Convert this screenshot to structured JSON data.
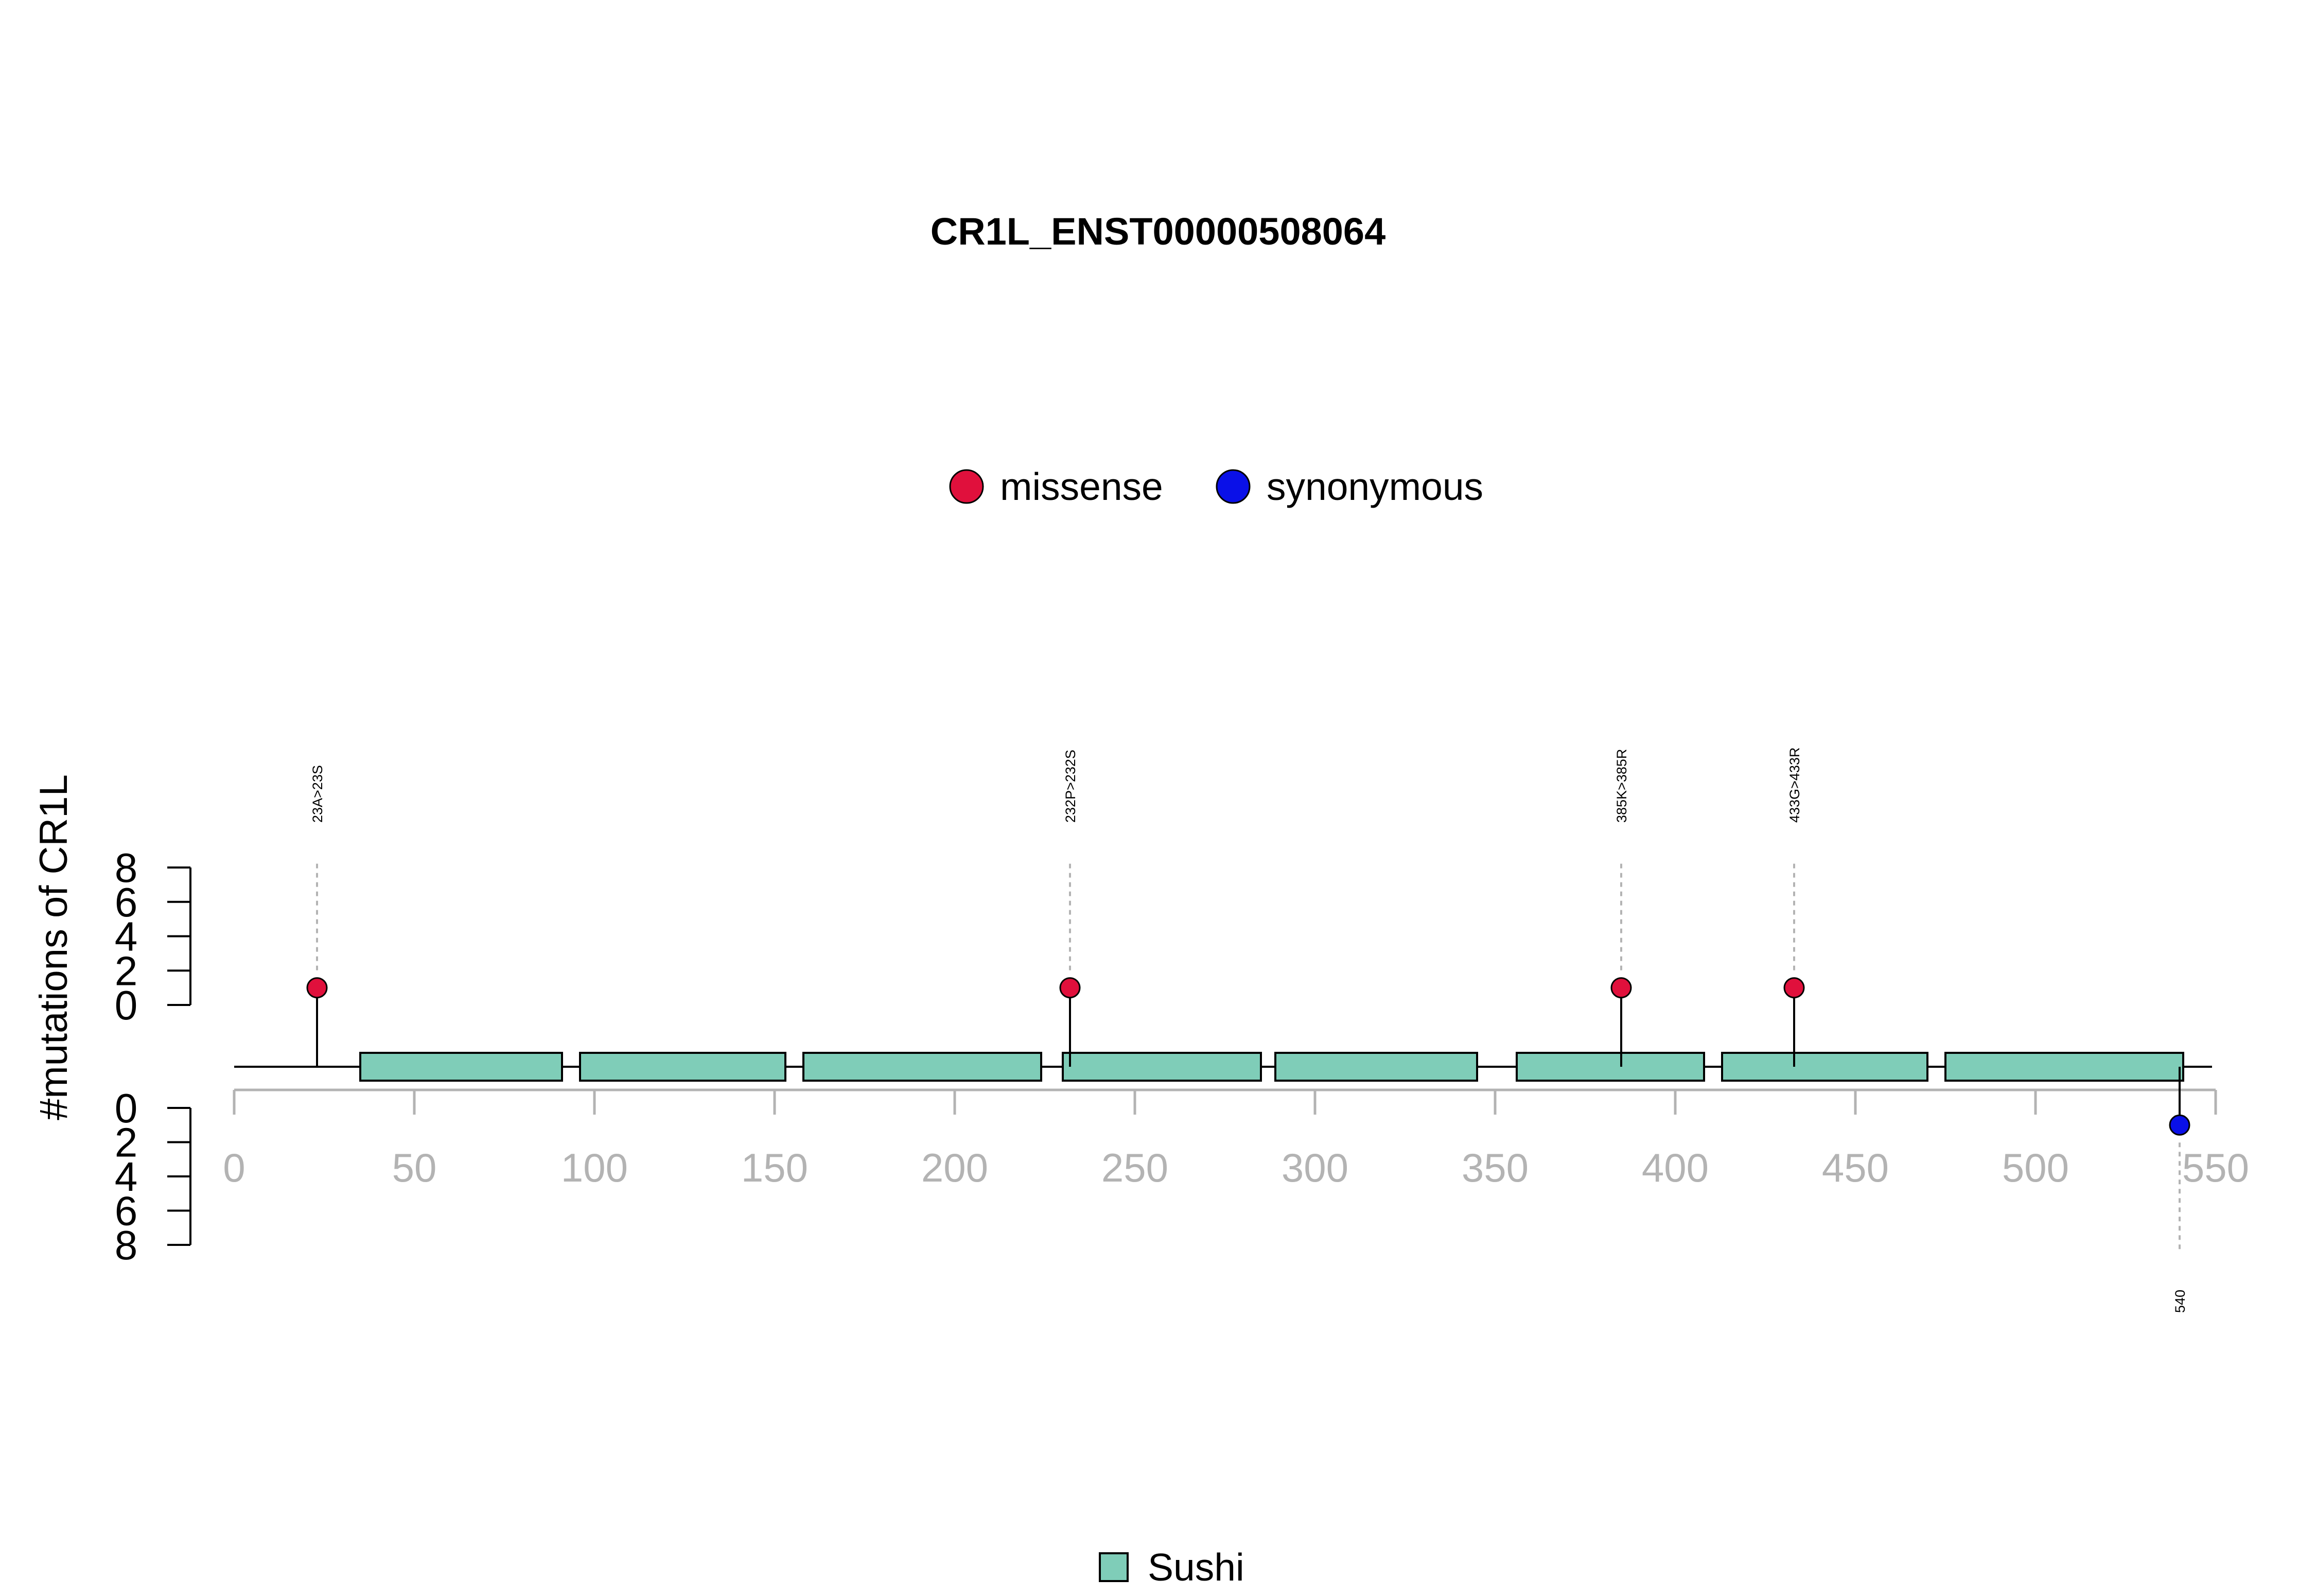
{
  "chart_data": {
    "type": "lollipop",
    "title": "CR1L_ENST00000508064",
    "ylabel": "#mutations of CR1L",
    "protein_length": 549,
    "xlim": [
      0,
      550
    ],
    "x_ticks": [
      0,
      50,
      100,
      150,
      200,
      250,
      300,
      350,
      400,
      450,
      500,
      550
    ],
    "y_ticks": [
      0,
      2,
      4,
      6,
      8
    ],
    "ylim": [
      0,
      8
    ],
    "legend_mutations": [
      {
        "label": "missense",
        "color": "#e0103c"
      },
      {
        "label": "synonymous",
        "color": "#0a10e8"
      }
    ],
    "legend_domains": [
      {
        "label": "Sushi",
        "color": "#7fcdb8"
      }
    ],
    "domains": [
      {
        "name": "Sushi",
        "start": 35,
        "end": 91
      },
      {
        "name": "Sushi",
        "start": 96,
        "end": 153
      },
      {
        "name": "Sushi",
        "start": 158,
        "end": 224
      },
      {
        "name": "Sushi",
        "start": 230,
        "end": 285
      },
      {
        "name": "Sushi",
        "start": 289,
        "end": 345
      },
      {
        "name": "Sushi",
        "start": 356,
        "end": 408
      },
      {
        "name": "Sushi",
        "start": 413,
        "end": 470
      },
      {
        "name": "Sushi",
        "start": 475,
        "end": 541
      }
    ],
    "mutations": [
      {
        "position": 23,
        "count": 1,
        "label": "23A>23S",
        "type": "missense",
        "side": "top"
      },
      {
        "position": 232,
        "count": 1,
        "label": "232P>232S",
        "type": "missense",
        "side": "top"
      },
      {
        "position": 385,
        "count": 1,
        "label": "385K>385R",
        "type": "missense",
        "side": "top"
      },
      {
        "position": 433,
        "count": 1,
        "label": "433G>433R",
        "type": "missense",
        "side": "top"
      },
      {
        "position": 540,
        "count": 1,
        "label": "540",
        "type": "synonymous",
        "side": "bottom"
      }
    ]
  }
}
